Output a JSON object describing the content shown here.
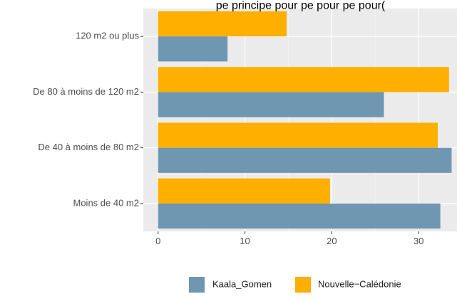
{
  "chart_data": {
    "type": "bar",
    "orientation": "horizontal",
    "title": "pe principe pour pe pour pe pour(",
    "xlabel": "",
    "ylabel": "",
    "categories": [
      "Moins de 40 m2",
      "De 40 à moins de 80 m2",
      "De 80 à moins de 120 m2",
      "120 m2 ou plus"
    ],
    "series": [
      {
        "name": "Kaala_Gomen",
        "color": "#6f97b1",
        "values": [
          32.5,
          33.8,
          26.0,
          8.0
        ]
      },
      {
        "name": "Nouvelle−Calédonie",
        "color": "#ffaf00",
        "values": [
          19.8,
          32.2,
          33.5,
          14.8
        ]
      }
    ],
    "x_ticks": [
      "0",
      "10",
      "20",
      "30"
    ],
    "xlim": [
      -1.7,
      34.5
    ],
    "grid": true,
    "legend_position": "bottom"
  }
}
